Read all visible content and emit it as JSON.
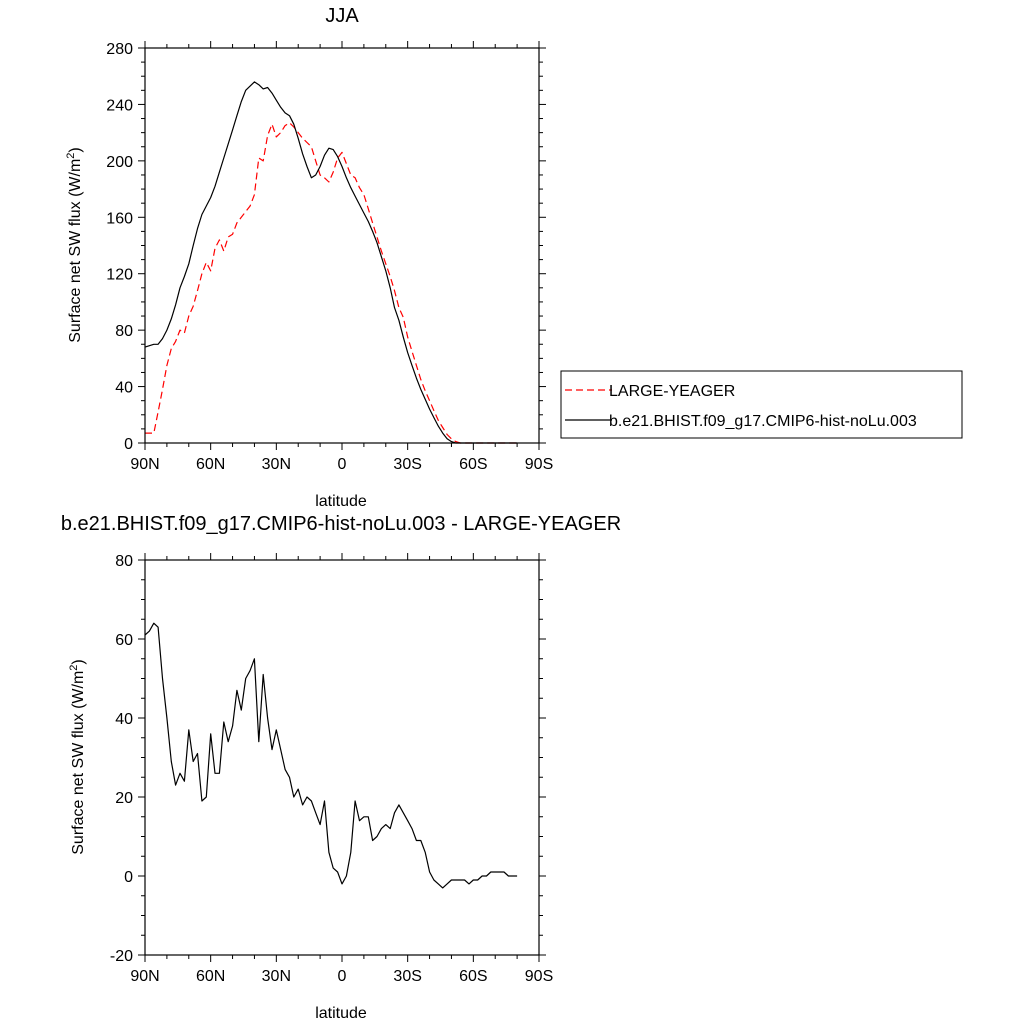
{
  "chart_data": [
    {
      "type": "line",
      "title": "JJA",
      "xlabel": "latitude",
      "ylabel": "Surface net SW flux (W/m",
      "ylabel_sup": "2",
      "ylabel_close": ")",
      "xlim": [
        90,
        -90
      ],
      "ylim": [
        0,
        280
      ],
      "xticks": [
        90,
        60,
        30,
        0,
        -30,
        -60,
        -90
      ],
      "xtick_labels": [
        "90N",
        "60N",
        "30N",
        "0",
        "30S",
        "60S",
        "90S"
      ],
      "yticks": [
        0,
        40,
        80,
        120,
        160,
        200,
        240,
        280
      ],
      "ytick_labels": [
        "0",
        "40",
        "80",
        "120",
        "160",
        "200",
        "240",
        "280"
      ],
      "legend_placement": "right",
      "series": [
        {
          "name": "LARGE-YEAGER",
          "color": "#ff0000",
          "style": "dashed",
          "x": [
            90,
            88,
            86,
            84,
            82,
            80,
            78,
            76,
            74,
            72,
            70,
            68,
            66,
            64,
            62,
            60,
            58,
            56,
            54,
            52,
            50,
            48,
            46,
            44,
            42,
            40,
            38,
            36,
            34,
            32,
            30,
            28,
            26,
            24,
            22,
            20,
            18,
            16,
            14,
            12,
            10,
            8,
            6,
            4,
            2,
            0,
            -2,
            -4,
            -6,
            -8,
            -10,
            -12,
            -14,
            -16,
            -18,
            -20,
            -22,
            -24,
            -26,
            -28,
            -30,
            -32,
            -34,
            -36,
            -38,
            -40,
            -42,
            -44,
            -46,
            -48,
            -50,
            -52,
            -54,
            -56,
            -58,
            -60,
            -62,
            -64,
            -66,
            -68,
            -70,
            -72,
            -74,
            -76,
            -78,
            -80
          ],
          "y": [
            7,
            7,
            7,
            22,
            38,
            55,
            67,
            72,
            80,
            78,
            90,
            97,
            108,
            120,
            128,
            122,
            138,
            144,
            136,
            146,
            148,
            156,
            160,
            164,
            168,
            176,
            202,
            200,
            218,
            226,
            217,
            220,
            225,
            227,
            224,
            220,
            216,
            213,
            210,
            200,
            190,
            188,
            185,
            192,
            202,
            206,
            198,
            190,
            188,
            181,
            176,
            166,
            156,
            146,
            136,
            127,
            118,
            108,
            96,
            89,
            75,
            65,
            55,
            45,
            37,
            30,
            23,
            16,
            11,
            6,
            3,
            1,
            0,
            0,
            0,
            0,
            0,
            0,
            0,
            0,
            0,
            0,
            0,
            0,
            0,
            0
          ]
        },
        {
          "name": "b.e21.BHIST.f09_g17.CMIP6-hist-noLu.003",
          "color": "#000000",
          "style": "solid",
          "x": [
            90,
            88,
            86,
            84,
            82,
            80,
            78,
            76,
            74,
            72,
            70,
            68,
            66,
            64,
            62,
            60,
            58,
            56,
            54,
            52,
            50,
            48,
            46,
            44,
            42,
            40,
            38,
            36,
            34,
            32,
            30,
            28,
            26,
            24,
            22,
            20,
            18,
            16,
            14,
            12,
            10,
            8,
            6,
            4,
            2,
            0,
            -2,
            -4,
            -6,
            -8,
            -10,
            -12,
            -14,
            -16,
            -18,
            -20,
            -22,
            -24,
            -26,
            -28,
            -30,
            -32,
            -34,
            -36,
            -38,
            -40,
            -42,
            -44,
            -46,
            -48,
            -50,
            -52,
            -54,
            -56,
            -58,
            -60,
            -62,
            -64,
            -66,
            -68,
            -70,
            -72,
            -74,
            -76,
            -78,
            -80
          ],
          "y": [
            68,
            69,
            70,
            70,
            74,
            80,
            88,
            98,
            110,
            118,
            127,
            140,
            152,
            162,
            168,
            174,
            182,
            192,
            202,
            212,
            222,
            232,
            242,
            250,
            253,
            256,
            254,
            251,
            252,
            248,
            243,
            238,
            234,
            232,
            226,
            216,
            205,
            196,
            188,
            190,
            196,
            204,
            209,
            208,
            203,
            196,
            188,
            181,
            175,
            169,
            163,
            157,
            150,
            142,
            132,
            122,
            110,
            96,
            87,
            75,
            64,
            55,
            46,
            38,
            31,
            24,
            18,
            12,
            7,
            3,
            1,
            0,
            0,
            0,
            0,
            0,
            0,
            0,
            0,
            0,
            0,
            0,
            0,
            0,
            0,
            0
          ]
        }
      ]
    },
    {
      "type": "line",
      "title": "b.e21.BHIST.f09_g17.CMIP6-hist-noLu.003 - LARGE-YEAGER",
      "xlabel": "latitude",
      "ylabel": "Surface net SW flux (W/m",
      "ylabel_sup": "2",
      "ylabel_close": ")",
      "xlim": [
        90,
        -90
      ],
      "ylim": [
        -20,
        80
      ],
      "xticks": [
        90,
        60,
        30,
        0,
        -30,
        -60,
        -90
      ],
      "xtick_labels": [
        "90N",
        "60N",
        "30N",
        "0",
        "30S",
        "60S",
        "90S"
      ],
      "yticks": [
        -20,
        0,
        20,
        40,
        60,
        80
      ],
      "ytick_labels": [
        "-20",
        "0",
        "20",
        "40",
        "60",
        "80"
      ],
      "series": [
        {
          "color": "#000000",
          "style": "solid",
          "x": [
            90,
            88,
            86,
            84,
            82,
            80,
            78,
            76,
            74,
            72,
            70,
            68,
            66,
            64,
            62,
            60,
            58,
            56,
            54,
            52,
            50,
            48,
            46,
            44,
            42,
            40,
            38,
            36,
            34,
            32,
            30,
            28,
            26,
            24,
            22,
            20,
            18,
            16,
            14,
            12,
            10,
            8,
            6,
            4,
            2,
            0,
            -2,
            -4,
            -6,
            -8,
            -10,
            -12,
            -14,
            -16,
            -18,
            -20,
            -22,
            -24,
            -26,
            -28,
            -30,
            -32,
            -34,
            -36,
            -38,
            -40,
            -42,
            -44,
            -46,
            -48,
            -50,
            -52,
            -54,
            -56,
            -58,
            -60,
            -62,
            -64,
            -66,
            -68,
            -70,
            -72,
            -74,
            -76,
            -78,
            -80
          ],
          "y": [
            61,
            62,
            64,
            63,
            50,
            40,
            29,
            23,
            26,
            24,
            37,
            29,
            31,
            19,
            20,
            36,
            26,
            26,
            39,
            34,
            38,
            47,
            42,
            50,
            52,
            55,
            34,
            51,
            40,
            32,
            37,
            32,
            27,
            25,
            20,
            22,
            18,
            20,
            19,
            16,
            13,
            19,
            6,
            2,
            1,
            -2,
            0,
            6,
            19,
            14,
            15,
            15,
            9,
            10,
            12,
            13,
            12,
            16,
            18,
            16,
            14,
            12,
            9,
            9,
            6,
            1,
            -1,
            -2,
            -3,
            -2,
            -1,
            -1,
            -1,
            -1,
            -2,
            -1,
            -1,
            0,
            0,
            1,
            1,
            1,
            1,
            0,
            0,
            0
          ]
        }
      ]
    }
  ]
}
